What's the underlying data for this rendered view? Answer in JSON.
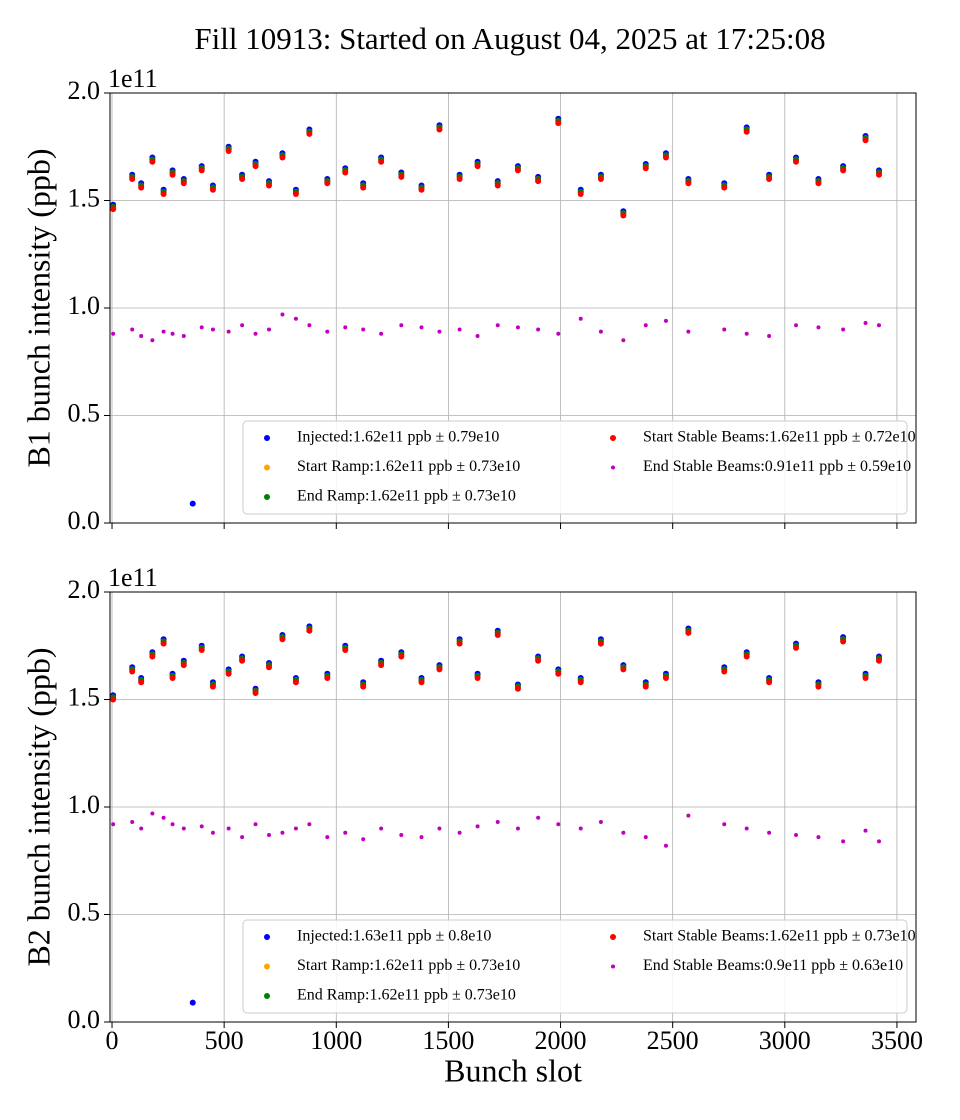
{
  "title": "Fill 10913: Started on August 04, 2025 at 17:25:08",
  "chart_data": [
    {
      "type": "scatter",
      "y_label": "B1 bunch intensity (ppb)",
      "y_offset_label": "1e11",
      "x": [
        5,
        90,
        130,
        180,
        230,
        270,
        320,
        360,
        400,
        450,
        520,
        580,
        640,
        700,
        760,
        820,
        880,
        960,
        1040,
        1120,
        1200,
        1290,
        1380,
        1460,
        1550,
        1630,
        1720,
        1810,
        1900,
        1990,
        2090,
        2180,
        2280,
        2380,
        2470,
        2570,
        2730,
        2830,
        2930,
        3050,
        3150,
        3260,
        3360,
        3420
      ],
      "series": [
        {
          "name": "Injected:1.62e11 ppb ± 0.79e10",
          "color": "#0000ff",
          "values": [
            1.48,
            1.62,
            1.58,
            1.7,
            1.55,
            1.64,
            1.6,
            0.09,
            1.66,
            1.57,
            1.75,
            1.62,
            1.68,
            1.59,
            1.72,
            1.55,
            1.83,
            1.6,
            1.65,
            1.58,
            1.7,
            1.63,
            1.57,
            1.85,
            1.62,
            1.68,
            1.59,
            1.66,
            1.61,
            1.88,
            1.55,
            1.62,
            1.45,
            1.67,
            1.72,
            1.6,
            1.58,
            1.84,
            1.62,
            1.7,
            1.6,
            1.66,
            1.8,
            1.64
          ]
        },
        {
          "name": "Start Ramp:1.62e11 ppb ± 0.73e10",
          "color": "#ffa500",
          "values": [
            1.47,
            1.61,
            1.57,
            1.69,
            1.54,
            1.63,
            1.59,
            null,
            1.65,
            1.56,
            1.74,
            1.61,
            1.67,
            1.58,
            1.71,
            1.54,
            1.82,
            1.59,
            1.64,
            1.57,
            1.69,
            1.62,
            1.56,
            1.84,
            1.61,
            1.67,
            1.58,
            1.65,
            1.6,
            1.87,
            1.54,
            1.61,
            1.44,
            1.66,
            1.71,
            1.59,
            1.57,
            1.83,
            1.61,
            1.69,
            1.59,
            1.65,
            1.79,
            1.63
          ]
        },
        {
          "name": "End Ramp:1.62e11 ppb ± 0.73e10",
          "color": "#008000",
          "values": [
            1.47,
            1.61,
            1.57,
            1.69,
            1.54,
            1.63,
            1.59,
            null,
            1.65,
            1.56,
            1.74,
            1.61,
            1.67,
            1.58,
            1.71,
            1.54,
            1.82,
            1.59,
            1.64,
            1.57,
            1.69,
            1.62,
            1.56,
            1.84,
            1.61,
            1.67,
            1.58,
            1.65,
            1.6,
            1.87,
            1.54,
            1.61,
            1.44,
            1.66,
            1.71,
            1.59,
            1.57,
            1.83,
            1.61,
            1.69,
            1.59,
            1.65,
            1.79,
            1.63
          ]
        },
        {
          "name": "Start Stable Beams:1.62e11 ppb ± 0.72e10",
          "color": "#ff0000",
          "values": [
            1.46,
            1.6,
            1.56,
            1.68,
            1.53,
            1.62,
            1.58,
            null,
            1.64,
            1.55,
            1.73,
            1.6,
            1.66,
            1.57,
            1.7,
            1.53,
            1.81,
            1.58,
            1.63,
            1.56,
            1.68,
            1.61,
            1.55,
            1.83,
            1.6,
            1.66,
            1.57,
            1.64,
            1.59,
            1.86,
            1.53,
            1.6,
            1.43,
            1.65,
            1.7,
            1.58,
            1.56,
            1.82,
            1.6,
            1.68,
            1.58,
            1.64,
            1.78,
            1.62
          ]
        },
        {
          "name": "End Stable Beams:0.91e11 ppb ± 0.59e10",
          "color": "#bf00bf",
          "values": [
            0.88,
            0.9,
            0.87,
            0.85,
            0.89,
            0.88,
            0.87,
            null,
            0.91,
            0.9,
            0.89,
            0.92,
            0.88,
            0.9,
            0.97,
            0.95,
            0.92,
            0.89,
            0.91,
            0.9,
            0.88,
            0.92,
            0.91,
            0.89,
            0.9,
            0.87,
            0.92,
            0.91,
            0.9,
            0.88,
            0.95,
            0.89,
            0.85,
            0.92,
            0.94,
            0.89,
            0.9,
            0.88,
            0.87,
            0.92,
            0.91,
            0.9,
            0.93,
            0.92
          ]
        }
      ],
      "xlim": [
        -9,
        3585
      ],
      "xticks": [
        0,
        500,
        1000,
        1500,
        2000,
        2500,
        3000,
        3500
      ],
      "ylim": [
        0,
        2.0
      ],
      "yticks": [
        {
          "value": 0,
          "label": "0.0"
        },
        0.5,
        {
          "value": 1.0,
          "label": "1.0"
        },
        1.5,
        {
          "value": 2.0,
          "label": "2.0"
        }
      ],
      "grid": true,
      "legend": "lower right"
    },
    {
      "type": "scatter",
      "y_label": "B2 bunch intensity (ppb)",
      "y_offset_label": "1e11",
      "x_label": "Bunch slot",
      "x": [
        5,
        90,
        130,
        180,
        230,
        270,
        320,
        360,
        400,
        450,
        520,
        580,
        640,
        700,
        760,
        820,
        880,
        960,
        1040,
        1120,
        1200,
        1290,
        1380,
        1460,
        1550,
        1630,
        1720,
        1810,
        1900,
        1990,
        2090,
        2180,
        2280,
        2380,
        2470,
        2570,
        2730,
        2830,
        2930,
        3050,
        3150,
        3260,
        3360,
        3420
      ],
      "series": [
        {
          "name": "Injected:1.63e11 ppb ± 0.8e10",
          "color": "#0000ff",
          "values": [
            1.52,
            1.65,
            1.6,
            1.72,
            1.78,
            1.62,
            1.68,
            0.09,
            1.75,
            1.58,
            1.64,
            1.7,
            1.55,
            1.67,
            1.8,
            1.6,
            1.84,
            1.62,
            1.75,
            1.58,
            1.68,
            1.72,
            1.6,
            1.66,
            1.78,
            1.62,
            1.82,
            1.57,
            1.7,
            1.64,
            1.6,
            1.78,
            1.66,
            1.58,
            1.62,
            1.83,
            1.65,
            1.72,
            1.6,
            1.76,
            1.58,
            1.79,
            1.62,
            1.7
          ]
        },
        {
          "name": "Start Ramp:1.62e11 ppb ± 0.73e10",
          "color": "#ffa500",
          "values": [
            1.51,
            1.64,
            1.59,
            1.71,
            1.77,
            1.61,
            1.67,
            null,
            1.74,
            1.57,
            1.63,
            1.69,
            1.54,
            1.66,
            1.79,
            1.59,
            1.83,
            1.61,
            1.74,
            1.57,
            1.67,
            1.71,
            1.59,
            1.65,
            1.77,
            1.61,
            1.81,
            1.56,
            1.69,
            1.63,
            1.59,
            1.77,
            1.65,
            1.57,
            1.61,
            1.82,
            1.64,
            1.71,
            1.59,
            1.75,
            1.57,
            1.78,
            1.61,
            1.69
          ]
        },
        {
          "name": "End Ramp:1.62e11 ppb ± 0.73e10",
          "color": "#008000",
          "values": [
            1.51,
            1.64,
            1.59,
            1.71,
            1.77,
            1.61,
            1.67,
            null,
            1.74,
            1.57,
            1.63,
            1.69,
            1.54,
            1.66,
            1.79,
            1.59,
            1.83,
            1.61,
            1.74,
            1.57,
            1.67,
            1.71,
            1.59,
            1.65,
            1.77,
            1.61,
            1.81,
            1.56,
            1.69,
            1.63,
            1.59,
            1.77,
            1.65,
            1.57,
            1.61,
            1.82,
            1.64,
            1.71,
            1.59,
            1.75,
            1.57,
            1.78,
            1.61,
            1.69
          ]
        },
        {
          "name": "Start Stable Beams:1.62e11 ppb ± 0.73e10",
          "color": "#ff0000",
          "values": [
            1.5,
            1.63,
            1.58,
            1.7,
            1.76,
            1.6,
            1.66,
            null,
            1.73,
            1.56,
            1.62,
            1.68,
            1.53,
            1.65,
            1.78,
            1.58,
            1.82,
            1.6,
            1.73,
            1.56,
            1.66,
            1.7,
            1.58,
            1.64,
            1.76,
            1.6,
            1.8,
            1.55,
            1.68,
            1.62,
            1.58,
            1.76,
            1.64,
            1.56,
            1.6,
            1.81,
            1.63,
            1.7,
            1.58,
            1.74,
            1.56,
            1.77,
            1.6,
            1.68
          ]
        },
        {
          "name": "End Stable Beams:0.9e11 ppb ± 0.63e10",
          "color": "#bf00bf",
          "values": [
            0.92,
            0.93,
            0.9,
            0.97,
            0.95,
            0.92,
            0.9,
            null,
            0.91,
            0.88,
            0.9,
            0.86,
            0.92,
            0.87,
            0.88,
            0.9,
            0.92,
            0.86,
            0.88,
            0.85,
            0.9,
            0.87,
            0.86,
            0.9,
            0.88,
            0.91,
            0.93,
            0.9,
            0.95,
            0.92,
            0.9,
            0.93,
            0.88,
            0.86,
            0.82,
            0.96,
            0.92,
            0.9,
            0.88,
            0.87,
            0.86,
            0.84,
            0.89,
            0.84
          ]
        }
      ],
      "xlim": [
        -9,
        3585
      ],
      "xticks": [
        0,
        500,
        1000,
        1500,
        2000,
        2500,
        3000,
        3500
      ],
      "ylim": [
        0,
        2.0
      ],
      "yticks": [
        {
          "value": 0,
          "label": "0.0"
        },
        0.5,
        {
          "value": 1.0,
          "label": "1.0"
        },
        1.5,
        {
          "value": 2.0,
          "label": "2.0"
        }
      ],
      "grid": true,
      "legend": "lower right"
    }
  ]
}
